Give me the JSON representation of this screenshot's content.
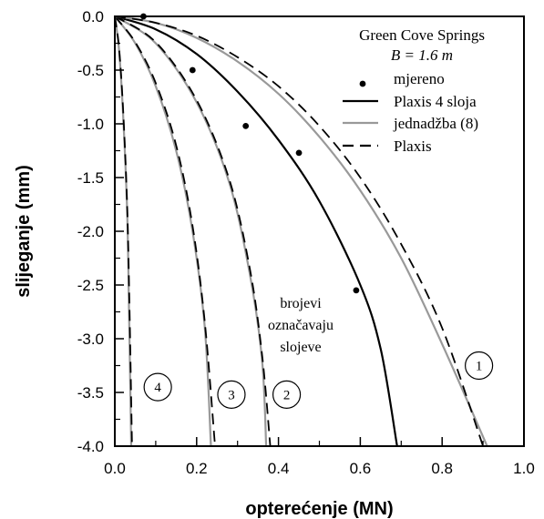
{
  "chart_data": {
    "type": "line",
    "xlabel": "opterećenje (MN)",
    "ylabel": "slijeganje (mm)",
    "xlim": [
      0.0,
      1.0
    ],
    "ylim": [
      -4.0,
      0.0
    ],
    "x_ticks": [
      "0.0",
      "0.2",
      "0.4",
      "0.6",
      "0.8",
      "1.0"
    ],
    "y_ticks": [
      "0.0",
      "-0.5",
      "-1.0",
      "-1.5",
      "-2.0",
      "-2.5",
      "-3.0",
      "-3.5",
      "-4.0"
    ],
    "grid": false,
    "legend_position": "top-right",
    "legend_title_line1": "Green Cove Springs",
    "legend_title_line2": "B = 1.6 m",
    "note_lines": [
      "brojevi",
      "označavaju",
      "slojeve"
    ],
    "series": [
      {
        "name": "mjereno",
        "style": "markers",
        "color": "#000000",
        "points": [
          [
            0.07,
            0.0
          ],
          [
            0.19,
            -0.5
          ],
          [
            0.32,
            -1.02
          ],
          [
            0.45,
            -1.27
          ],
          [
            0.59,
            -2.55
          ]
        ]
      },
      {
        "name": "Plaxis 4 sloja",
        "style": "solid",
        "color": "#000000",
        "points": [
          [
            0.0,
            0.0
          ],
          [
            0.1,
            -0.12
          ],
          [
            0.2,
            -0.35
          ],
          [
            0.3,
            -0.7
          ],
          [
            0.4,
            -1.15
          ],
          [
            0.5,
            -1.72
          ],
          [
            0.6,
            -2.5
          ],
          [
            0.65,
            -3.1
          ],
          [
            0.69,
            -4.0
          ]
        ]
      },
      {
        "name": "jednadžba (8)",
        "style": "solid",
        "color": "#999999",
        "points": [
          [
            0.0,
            0.0
          ],
          [
            0.1,
            -0.06
          ],
          [
            0.2,
            -0.2
          ],
          [
            0.3,
            -0.42
          ],
          [
            0.4,
            -0.72
          ],
          [
            0.5,
            -1.12
          ],
          [
            0.6,
            -1.62
          ],
          [
            0.7,
            -2.25
          ],
          [
            0.8,
            -3.05
          ],
          [
            0.91,
            -4.0
          ]
        ]
      },
      {
        "name": "Plaxis",
        "style": "dashed",
        "color": "#000000",
        "points": [
          [
            0.0,
            0.0
          ],
          [
            0.1,
            -0.06
          ],
          [
            0.2,
            -0.18
          ],
          [
            0.3,
            -0.38
          ],
          [
            0.4,
            -0.65
          ],
          [
            0.5,
            -1.02
          ],
          [
            0.6,
            -1.5
          ],
          [
            0.7,
            -2.12
          ],
          [
            0.8,
            -2.9
          ],
          [
            0.9,
            -4.0
          ]
        ]
      }
    ],
    "layer_curves": [
      {
        "label": "1",
        "label_x": 0.89,
        "label_y": -3.25
      },
      {
        "label": "2",
        "label_x": 0.42,
        "label_y": -3.52,
        "solid": [
          [
            0.0,
            0.0
          ],
          [
            0.1,
            -0.25
          ],
          [
            0.2,
            -0.8
          ],
          [
            0.28,
            -1.55
          ],
          [
            0.33,
            -2.4
          ],
          [
            0.36,
            -3.2
          ],
          [
            0.37,
            -4.0
          ]
        ],
        "dashed": [
          [
            0.0,
            0.0
          ],
          [
            0.1,
            -0.24
          ],
          [
            0.2,
            -0.78
          ],
          [
            0.28,
            -1.52
          ],
          [
            0.33,
            -2.35
          ],
          [
            0.36,
            -3.15
          ],
          [
            0.38,
            -4.0
          ]
        ]
      },
      {
        "label": "3",
        "label_x": 0.285,
        "label_y": -3.52,
        "solid": [
          [
            0.0,
            0.0
          ],
          [
            0.05,
            -0.25
          ],
          [
            0.1,
            -0.65
          ],
          [
            0.15,
            -1.25
          ],
          [
            0.19,
            -2.0
          ],
          [
            0.22,
            -2.9
          ],
          [
            0.235,
            -4.0
          ]
        ],
        "dashed": [
          [
            0.0,
            0.0
          ],
          [
            0.05,
            -0.24
          ],
          [
            0.1,
            -0.62
          ],
          [
            0.15,
            -1.2
          ],
          [
            0.19,
            -1.95
          ],
          [
            0.22,
            -2.85
          ],
          [
            0.245,
            -4.0
          ]
        ]
      },
      {
        "label": "4",
        "label_x": 0.105,
        "label_y": -3.45,
        "solid": [
          [
            0.0,
            0.0
          ],
          [
            0.01,
            -0.3
          ],
          [
            0.02,
            -0.9
          ],
          [
            0.03,
            -1.8
          ],
          [
            0.035,
            -2.8
          ],
          [
            0.04,
            -4.0
          ]
        ],
        "dashed": [
          [
            0.0,
            0.0
          ],
          [
            0.01,
            -0.28
          ],
          [
            0.02,
            -0.85
          ],
          [
            0.03,
            -1.75
          ],
          [
            0.036,
            -2.75
          ],
          [
            0.042,
            -4.0
          ]
        ]
      }
    ]
  }
}
